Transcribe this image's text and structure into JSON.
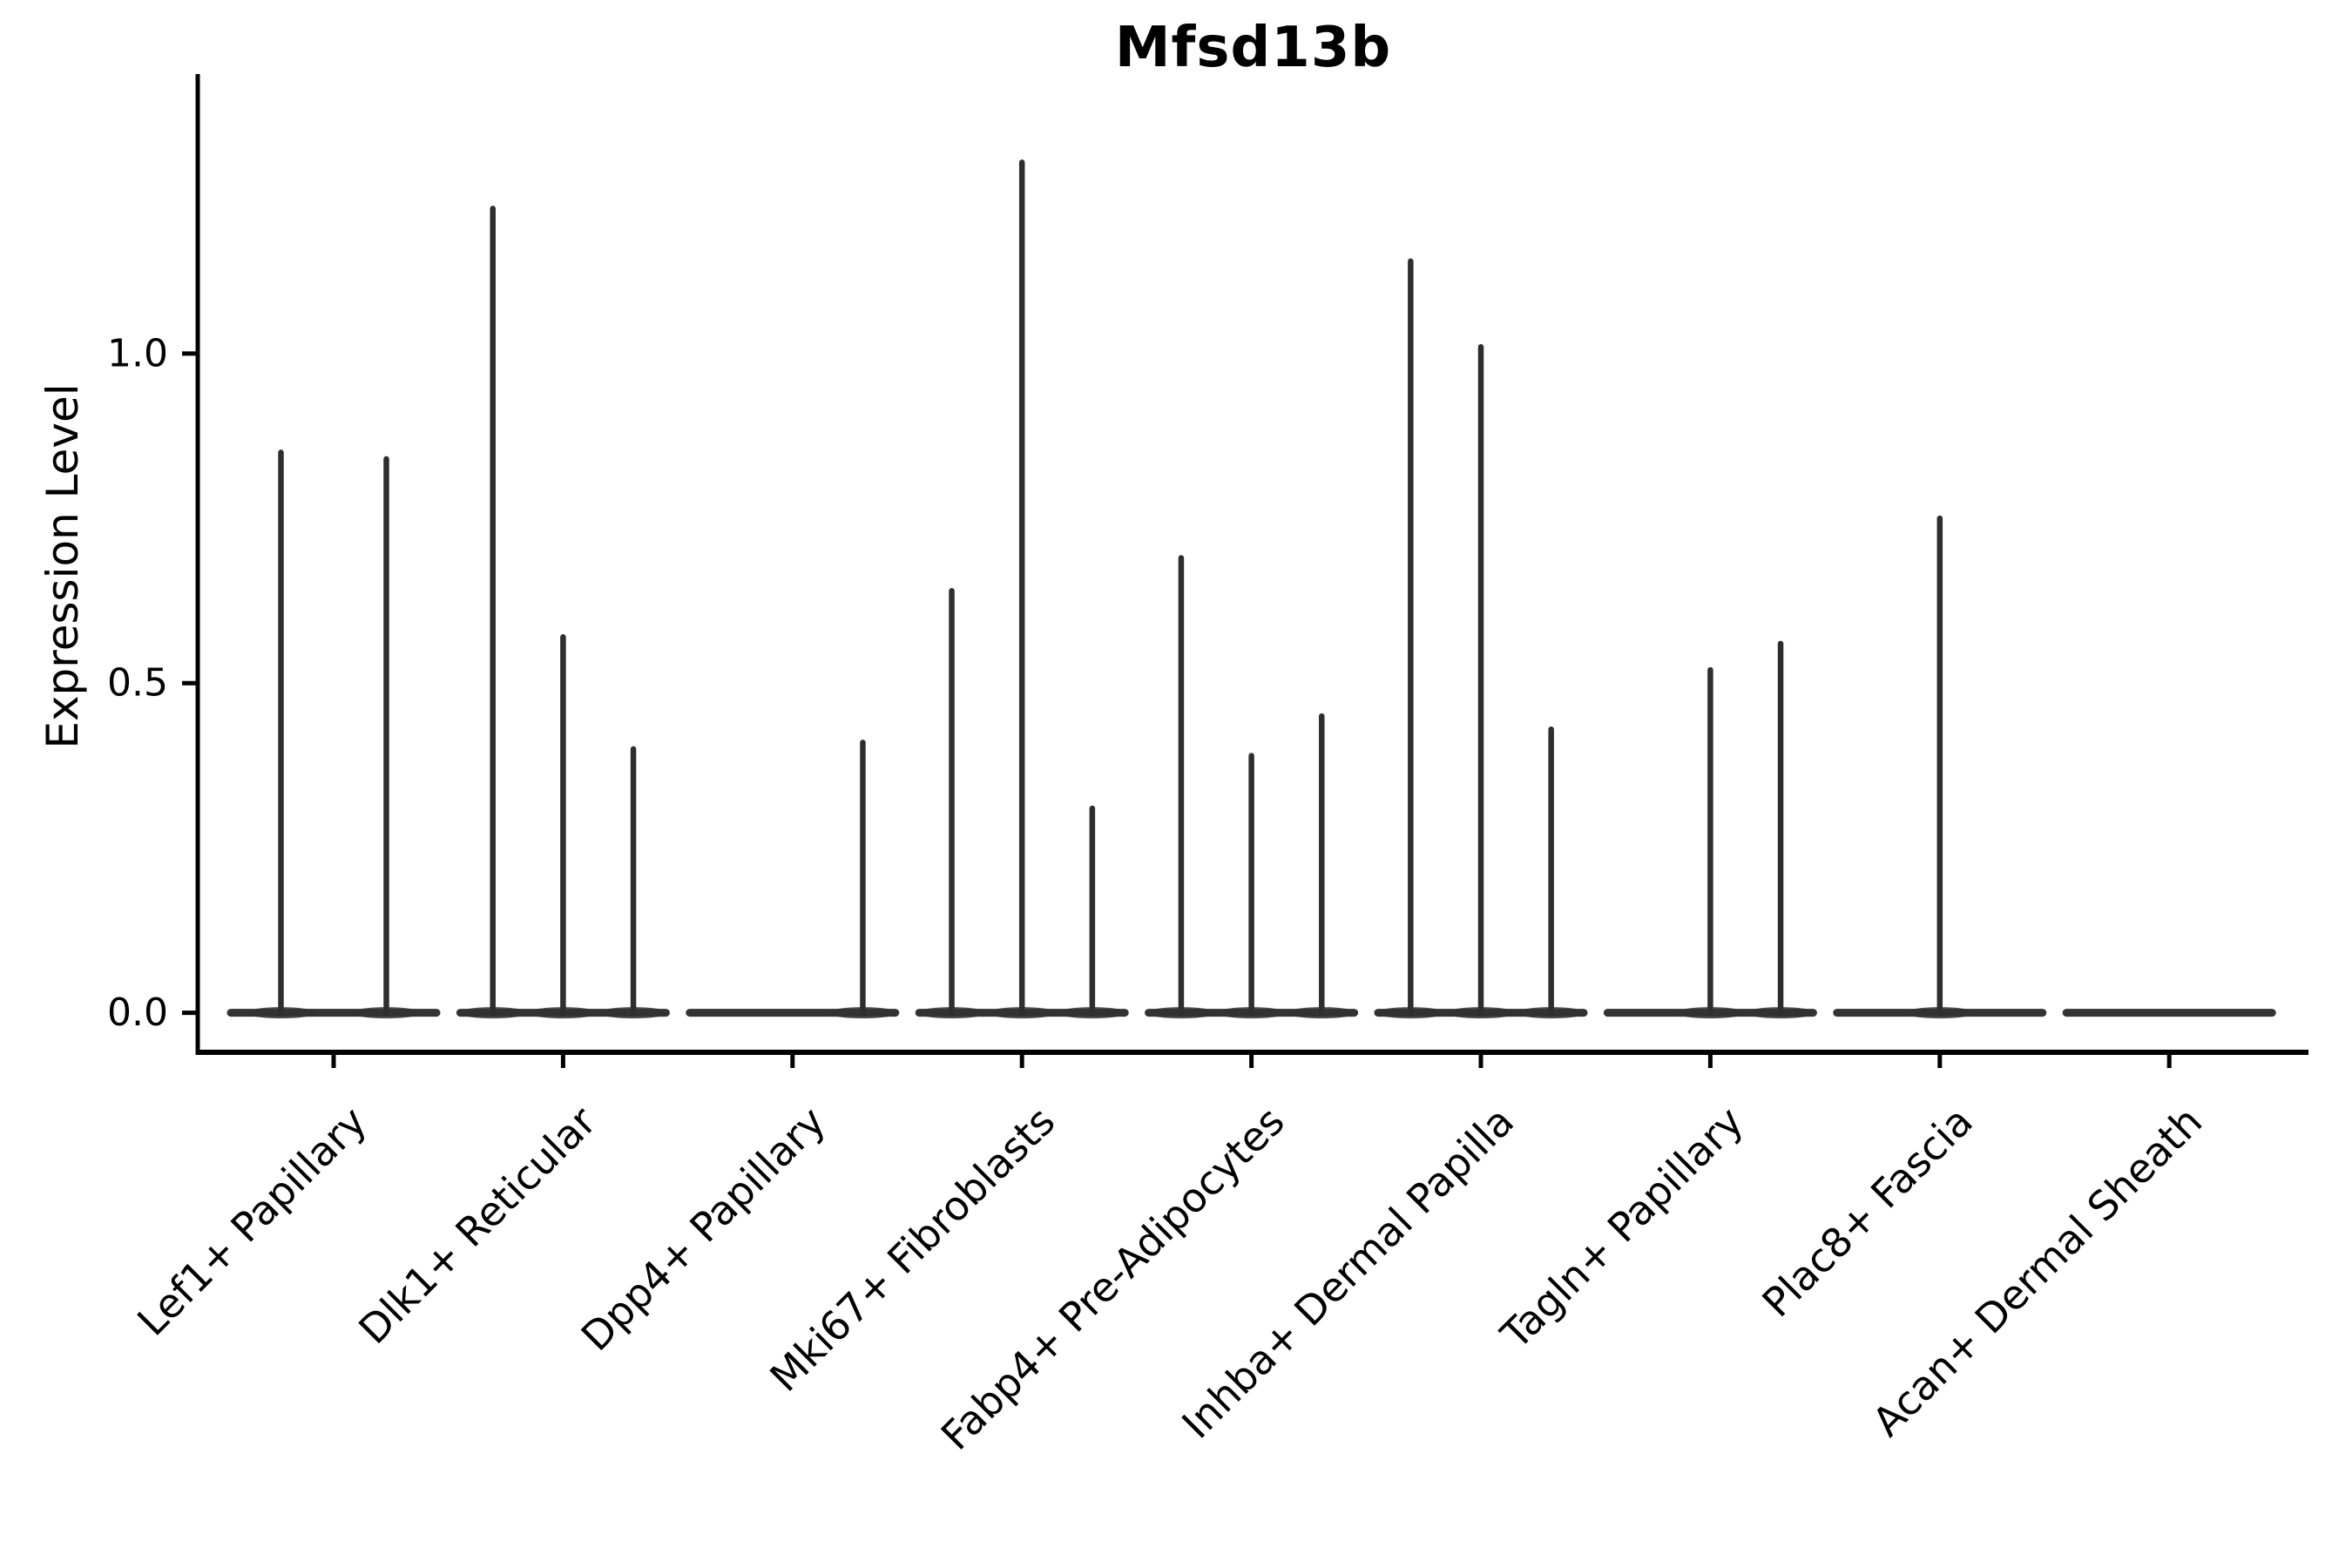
{
  "chart_data": {
    "type": "violin",
    "title": "Mfsd13b",
    "ylabel": "Expression Level",
    "xlabel": "",
    "grid": false,
    "legend": "none",
    "ylim": [
      -0.06,
      1.424
    ],
    "yticks": [
      {
        "label": "0.0",
        "value": 0.0
      },
      {
        "label": "0.5",
        "value": 0.5
      },
      {
        "label": "1.0",
        "value": 1.0
      }
    ],
    "description": "Needle-thin violins per group within each cell-type category; flat density at 0 with narrow spikes reaching each group's maximum expression. Zero means no expressing cells (flat baseline only).",
    "categories": [
      {
        "label": "Lef1+ Papillary",
        "violin_peaks": [
          0.85,
          0.84
        ]
      },
      {
        "label": "Dlk1+ Reticular",
        "violin_peaks": [
          1.22,
          0.57,
          0.4
        ]
      },
      {
        "label": "Dpp4+ Papillary",
        "violin_peaks": [
          0,
          0,
          0.41
        ]
      },
      {
        "label": "Mki67+ Fibroblasts",
        "violin_peaks": [
          0.64,
          1.29,
          0.31
        ]
      },
      {
        "label": "Fabp4+ Pre-Adipocytes",
        "violin_peaks": [
          0.69,
          0.39,
          0.45
        ]
      },
      {
        "label": "Inhba+ Dermal Papilla",
        "violin_peaks": [
          1.14,
          1.01,
          0.43
        ]
      },
      {
        "label": "Tagln+ Papillary",
        "violin_peaks": [
          0,
          0.52,
          0.56
        ]
      },
      {
        "label": "Plac8+ Fascia",
        "violin_peaks": [
          0,
          0.75,
          0
        ]
      },
      {
        "label": "Acan+ Dermal Sheath",
        "violin_peaks": [
          0,
          0,
          0
        ]
      }
    ],
    "colors": {
      "violin_line": "#2e2e2e",
      "baseline": "#333333",
      "axis": "#000000",
      "text": "#000000",
      "background": "#ffffff"
    }
  }
}
